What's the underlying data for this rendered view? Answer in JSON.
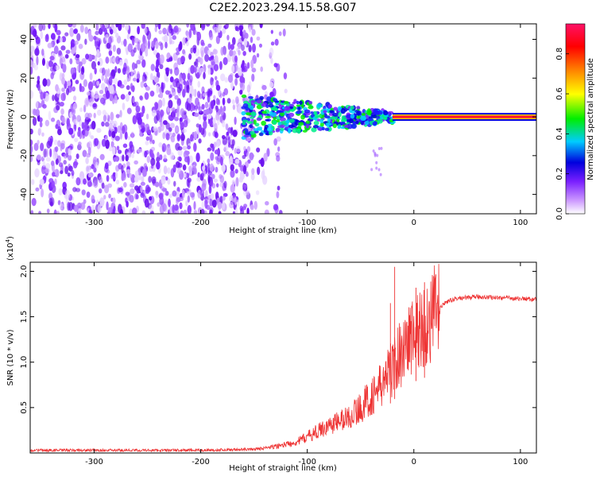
{
  "title": "C2E2.2023.294.15.58.G07",
  "colors": {
    "snr_line": "#ee3333",
    "colorbar_stops": [
      "#cc99ff",
      "#7a1fff",
      "#0000dd",
      "#00ccff",
      "#00ee00",
      "#ffff00",
      "#ff8800",
      "#ff0000",
      "#ff1166"
    ]
  },
  "chart_data": [
    {
      "type": "heatmap",
      "name": "spectrogram",
      "xlabel": "Height of straight line (km)",
      "ylabel": "Frequency (Hz)",
      "xlim": [
        -360,
        115
      ],
      "ylim": [
        -50,
        48
      ],
      "xticks": [
        -300,
        -200,
        -100,
        0,
        100
      ],
      "xtick_labels": [
        "-300",
        "-200",
        "-100",
        "0",
        "100"
      ],
      "yticks": [
        -40,
        -20,
        0,
        20,
        40
      ],
      "ytick_labels": [
        "-40",
        "-20",
        "0",
        "20",
        "40"
      ],
      "colorbar": {
        "label": "Normalized spectral amplitude",
        "range": [
          0,
          0.95
        ],
        "ticks": [
          0.0,
          0.2,
          0.4,
          0.6,
          0.8
        ],
        "tick_labels": [
          "0.0",
          "0.2",
          "0.4",
          "0.6",
          "0.8"
        ]
      },
      "signal_track": {
        "frequency": 0,
        "start": -160,
        "end": 115,
        "noise_end": -150
      }
    },
    {
      "type": "line",
      "name": "snr",
      "xlabel": "Height of straight line (km)",
      "ylabel": "SNR (10 * v/v)",
      "multiplier_label": "(x10",
      "multiplier_exp": "4",
      "multiplier_close": ")",
      "xlim": [
        -360,
        115
      ],
      "ylim": [
        0,
        2.1
      ],
      "xticks": [
        -300,
        -200,
        -100,
        0,
        100
      ],
      "xtick_labels": [
        "-300",
        "-200",
        "-100",
        "0",
        "100"
      ],
      "yticks": [
        0.5,
        1.0,
        1.5,
        2.0
      ],
      "ytick_labels": [
        "0.5",
        "1.0",
        "1.5",
        "2.0"
      ],
      "series": [
        {
          "name": "SNR",
          "x": [
            -360,
            -300,
            -200,
            -150,
            -130,
            -110,
            -100,
            -90,
            -80,
            -70,
            -60,
            -50,
            -40,
            -30,
            -20,
            -15,
            -10,
            -5,
            0,
            5,
            10,
            15,
            20,
            30,
            40,
            50,
            60,
            80,
            100,
            115
          ],
          "y": [
            0.03,
            0.03,
            0.03,
            0.04,
            0.07,
            0.12,
            0.18,
            0.24,
            0.3,
            0.35,
            0.4,
            0.5,
            0.62,
            0.75,
            0.95,
            1.05,
            1.15,
            1.25,
            1.3,
            1.35,
            1.38,
            1.45,
            1.55,
            1.66,
            1.7,
            1.71,
            1.72,
            1.71,
            1.7,
            1.69
          ],
          "spikes": [
            {
              "x": -18,
              "y": 2.05
            },
            {
              "x": -22,
              "y": 1.65
            },
            {
              "x": 2,
              "y": 1.82
            },
            {
              "x": 10,
              "y": 1.88
            }
          ]
        }
      ]
    }
  ]
}
